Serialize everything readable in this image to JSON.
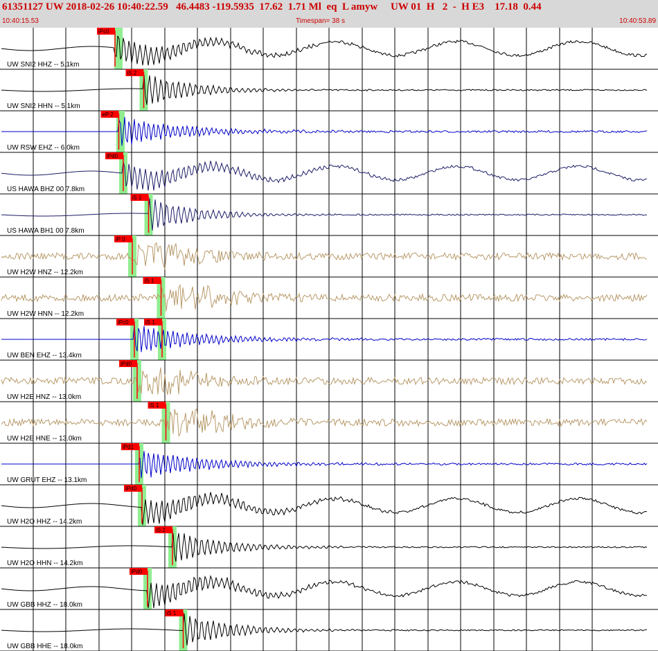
{
  "header": {
    "title": "61351127 UW 2018-02-26 10:40:22.59   46.4483 -119.5935  17.62  1.71 Ml  eq  L amyw     UW 01  H   2  -  H E3    17.18  0.44",
    "start_time": "10:40:15.53",
    "timespan": "Timespan=  38 s",
    "end_time": "10:40:53.89"
  },
  "colors": {
    "header_text": "#cc0000",
    "pick_box": "#ff0000",
    "pick_window": "#90ee90",
    "black": "#000000",
    "blue": "#0000c8",
    "navy": "#1a1a66",
    "tan": "#b89a6a"
  },
  "channels": [
    {
      "label": "UW SNI2 HHZ -- 5.1km",
      "color": "black",
      "wave": "lowfreq",
      "pick": "iPc0",
      "pick_time": 6.0,
      "window_time": 6.2
    },
    {
      "label": "UW SNI2 HHN -- 5.1km",
      "color": "black",
      "wave": "lowamp",
      "pick": "iS 2",
      "pick_time": 7.6,
      "window_time": 7.6
    },
    {
      "label": "UW RSW EHZ -- 6.0km",
      "color": "blue",
      "wave": "hifreq",
      "pick": "eP 2",
      "pick_time": 6.1,
      "window_time": 6.2
    },
    {
      "label": "US HAWA BHZ 00 7.8km",
      "color": "navy",
      "wave": "lowfreq",
      "pick": "iPd0",
      "pick_time": 6.3,
      "window_time": 6.3
    },
    {
      "label": "US HAWA BH1 00 7.8km",
      "color": "navy",
      "wave": "lowamp",
      "pick": "iS 1",
      "pick_time": 7.7,
      "window_time": 7.7
    },
    {
      "label": "UW H2W HNZ -- 12.2km",
      "color": "tan",
      "wave": "noisy",
      "pick": "iP 0",
      "pick_time": 6.7,
      "window_time": 6.7
    },
    {
      "label": "UW H2W HNN -- 12.2km",
      "color": "tan",
      "wave": "noisy",
      "pick": "iS 1",
      "pick_time": 8.3,
      "window_time": 8.3
    },
    {
      "label": "UW BEN EHZ -- 13.4km",
      "color": "blue",
      "wave": "hifreq",
      "pick": "iPc0",
      "pick_time": 6.7,
      "window_time": 6.7,
      "pick2": "iS 1",
      "pick2_time": 8.3
    },
    {
      "label": "UW H2E HNZ -- 13.0km",
      "color": "tan",
      "wave": "noisy",
      "pick": "iPd0",
      "pick_time": 6.8,
      "window_time": 6.8
    },
    {
      "label": "UW H2E HNE -- 13.0km",
      "color": "tan",
      "wave": "noisy",
      "pick": "iS 1",
      "pick_time": 8.4,
      "window_time": 8.4
    },
    {
      "label": "UW GRUT EHZ -- 13.1km",
      "color": "blue",
      "wave": "hifreq",
      "pick": "iPd1",
      "pick_time": 6.8,
      "window_time": 6.8
    },
    {
      "label": "UW H2O HHZ -- 14.2km",
      "color": "black",
      "wave": "lowfreq",
      "pick": "iPd0",
      "pick_time": 6.9,
      "window_time": 6.9
    },
    {
      "label": "UW H2O HHN -- 14.2km",
      "color": "black",
      "wave": "lowamp",
      "pick": "iS 2",
      "pick_time": 8.6,
      "window_time": 8.6
    },
    {
      "label": "UW GBB HHZ -- 18.0km",
      "color": "black",
      "wave": "lowfreq",
      "pick": "iPd0",
      "pick_time": 7.1,
      "window_time": 7.1
    },
    {
      "label": "UW GBB HHE -- 18.0km",
      "color": "black",
      "wave": "lowamp",
      "pick": "iS 1",
      "pick_time": 9.1,
      "window_time": 9.1
    }
  ]
}
